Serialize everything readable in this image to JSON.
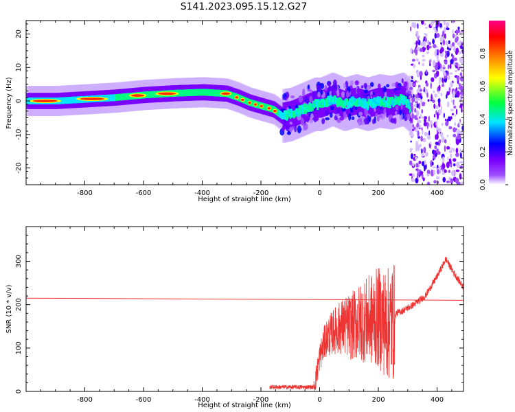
{
  "title": "S141.2023.095.15.12.G27",
  "chart_data": [
    {
      "type": "heatmap",
      "title": "",
      "xlabel": "Height of straight line (km)",
      "ylabel": "Frequency (Hz)",
      "xlim": [
        -1000,
        490
      ],
      "ylim": [
        -25,
        24
      ],
      "xticks": [
        -800,
        -600,
        -400,
        -200,
        0,
        200,
        400
      ],
      "yticks": [
        -20,
        -10,
        0,
        10,
        20
      ],
      "colorbar": {
        "label": "Normalized spectral amplitude",
        "range": [
          0,
          1
        ],
        "ticks": [
          0.0,
          0.2,
          0.4,
          0.6,
          0.8
        ],
        "colormap": [
          "#ffffff",
          "#7a00ff",
          "#0000ff",
          "#00e5ff",
          "#00ff40",
          "#ffff00",
          "#ff8000",
          "#ff0000",
          "#ff00aa"
        ]
      },
      "ridge": {
        "x": [
          -1000,
          -900,
          -800,
          -700,
          -600,
          -500,
          -400,
          -320,
          -280,
          -240,
          -200,
          -160,
          -130,
          -100,
          -60,
          -20,
          0,
          40,
          80,
          120,
          160,
          200,
          240,
          280,
          300,
          310
        ],
        "y": [
          0,
          0,
          0.5,
          1,
          1.8,
          2.3,
          2.6,
          2.2,
          1,
          -0.5,
          -1.5,
          -2.5,
          -4.5,
          -4,
          -2.5,
          -1,
          -1,
          0.5,
          -1,
          0,
          -1,
          0,
          -0.5,
          0.5,
          -1,
          -3
        ]
      },
      "noise_region_x": [
        310,
        490
      ],
      "grid": false
    },
    {
      "type": "line",
      "title": "",
      "xlabel": "Height of straight line (km)",
      "ylabel": "SNR (10 * v/v)",
      "xlim": [
        -1000,
        490
      ],
      "ylim": [
        0,
        380
      ],
      "xticks": [
        -800,
        -600,
        -400,
        -200,
        0,
        200,
        400
      ],
      "yticks": [
        0,
        100,
        200,
        300
      ],
      "series": [
        {
          "color": "#ee3333",
          "x": [
            -170,
            -120,
            -60,
            -20,
            -10,
            0,
            20,
            50,
            80,
            110,
            140,
            170,
            200,
            230,
            255,
            260,
            280,
            320,
            360,
            400,
            430,
            460,
            490
          ],
          "y": [
            10,
            10,
            10,
            10,
            40,
            80,
            120,
            140,
            150,
            150,
            160,
            165,
            170,
            155,
            160,
            180,
            185,
            200,
            220,
            265,
            305,
            270,
            240
          ]
        },
        {
          "color": "#ee3333",
          "x": [
            -1000,
            490
          ],
          "y": [
            215,
            210
          ]
        }
      ],
      "grid": false
    }
  ]
}
